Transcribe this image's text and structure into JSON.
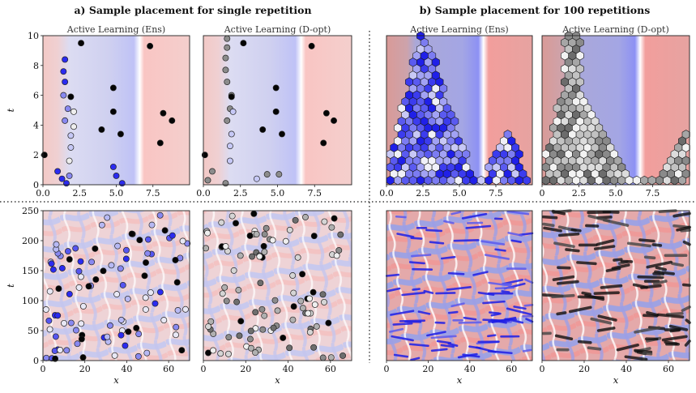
{
  "figure": {
    "title_a": "a) Sample placement for single repetition",
    "title_b": "b) Sample placement for 100 repetitions"
  },
  "chart_data": [
    {
      "id": "a-top-ens",
      "type": "scatter",
      "title": "Active Learning (Ens)",
      "xlabel": "",
      "ylabel": "t",
      "xlim": [
        0,
        10
      ],
      "ylim": [
        0,
        10
      ],
      "xticks": [
        "0.0",
        "2.5",
        "5.0",
        "7.5"
      ],
      "yticks": [
        "0",
        "2",
        "4",
        "6",
        "8",
        "10"
      ],
      "points": [
        {
          "x": 0.1,
          "y": 2.0,
          "c": "black"
        },
        {
          "x": 1.0,
          "y": 0.9,
          "c": "blue"
        },
        {
          "x": 1.3,
          "y": 0.4,
          "c": "blue"
        },
        {
          "x": 1.6,
          "y": 0.1,
          "c": "blue"
        },
        {
          "x": 1.9,
          "y": 2.5,
          "c": "light"
        },
        {
          "x": 1.9,
          "y": 3.3,
          "c": "light"
        },
        {
          "x": 1.5,
          "y": 4.3,
          "c": "mid"
        },
        {
          "x": 1.7,
          "y": 5.1,
          "c": "mid"
        },
        {
          "x": 1.4,
          "y": 6.0,
          "c": "mid"
        },
        {
          "x": 1.5,
          "y": 6.9,
          "c": "blue"
        },
        {
          "x": 1.4,
          "y": 7.6,
          "c": "blue"
        },
        {
          "x": 1.5,
          "y": 8.4,
          "c": "blue"
        },
        {
          "x": 1.8,
          "y": 1.6,
          "c": "pale"
        },
        {
          "x": 2.1,
          "y": 3.9,
          "c": "pale"
        },
        {
          "x": 2.1,
          "y": 4.9,
          "c": "pale"
        },
        {
          "x": 1.9,
          "y": 5.9,
          "c": "black"
        },
        {
          "x": 1.8,
          "y": 0.6,
          "c": "mid"
        },
        {
          "x": 2.6,
          "y": 9.5,
          "c": "black"
        },
        {
          "x": 4.0,
          "y": 3.7,
          "c": "black"
        },
        {
          "x": 4.8,
          "y": 6.5,
          "c": "black"
        },
        {
          "x": 4.8,
          "y": 4.9,
          "c": "black"
        },
        {
          "x": 5.3,
          "y": 3.4,
          "c": "black"
        },
        {
          "x": 4.8,
          "y": 1.2,
          "c": "blue"
        },
        {
          "x": 5.0,
          "y": 0.6,
          "c": "blue"
        },
        {
          "x": 5.4,
          "y": 0.1,
          "c": "blue"
        },
        {
          "x": 7.3,
          "y": 9.3,
          "c": "black"
        },
        {
          "x": 8.2,
          "y": 4.8,
          "c": "black"
        },
        {
          "x": 8.8,
          "y": 4.3,
          "c": "black"
        },
        {
          "x": 8.0,
          "y": 2.8,
          "c": "black"
        }
      ]
    },
    {
      "id": "a-top-dopt",
      "type": "scatter",
      "title": "Active Learning (D-opt)",
      "xlim": [
        0,
        10
      ],
      "ylim": [
        0,
        10
      ],
      "xticks": [
        "0.0",
        "2.5",
        "5.0",
        "7.5"
      ],
      "points": [
        {
          "x": 0.1,
          "y": 2.0,
          "c": "black"
        },
        {
          "x": 0.6,
          "y": 0.9,
          "c": "gray"
        },
        {
          "x": 0.3,
          "y": 0.3,
          "c": "gray"
        },
        {
          "x": 1.5,
          "y": 0.1,
          "c": "gray"
        },
        {
          "x": 1.8,
          "y": 2.6,
          "c": "light"
        },
        {
          "x": 1.9,
          "y": 3.4,
          "c": "light"
        },
        {
          "x": 1.6,
          "y": 4.3,
          "c": "gray"
        },
        {
          "x": 1.8,
          "y": 5.1,
          "c": "gray"
        },
        {
          "x": 1.9,
          "y": 6.0,
          "c": "gray"
        },
        {
          "x": 1.6,
          "y": 6.9,
          "c": "gray"
        },
        {
          "x": 1.5,
          "y": 7.7,
          "c": "gray"
        },
        {
          "x": 1.5,
          "y": 8.5,
          "c": "gray"
        },
        {
          "x": 1.6,
          "y": 9.2,
          "c": "gray"
        },
        {
          "x": 1.6,
          "y": 9.8,
          "c": "gray"
        },
        {
          "x": 1.8,
          "y": 1.6,
          "c": "light"
        },
        {
          "x": 2.0,
          "y": 4.9,
          "c": "light"
        },
        {
          "x": 1.9,
          "y": 5.9,
          "c": "black"
        },
        {
          "x": 2.7,
          "y": 9.5,
          "c": "black"
        },
        {
          "x": 4.0,
          "y": 3.7,
          "c": "black"
        },
        {
          "x": 4.9,
          "y": 6.5,
          "c": "black"
        },
        {
          "x": 4.9,
          "y": 4.9,
          "c": "black"
        },
        {
          "x": 5.3,
          "y": 3.4,
          "c": "black"
        },
        {
          "x": 4.3,
          "y": 0.7,
          "c": "gray"
        },
        {
          "x": 3.6,
          "y": 0.4,
          "c": "light"
        },
        {
          "x": 5.1,
          "y": 0.7,
          "c": "gray"
        },
        {
          "x": 7.3,
          "y": 9.3,
          "c": "black"
        },
        {
          "x": 8.3,
          "y": 4.8,
          "c": "black"
        },
        {
          "x": 8.8,
          "y": 4.3,
          "c": "black"
        },
        {
          "x": 8.1,
          "y": 2.8,
          "c": "black"
        }
      ]
    },
    {
      "id": "b-top-ens",
      "type": "heatmap",
      "title": "Active Learning (Ens)",
      "xlim": [
        0,
        10
      ],
      "ylim": [
        0,
        10
      ],
      "xticks": [
        "0.0",
        "2.5",
        "5.0",
        "7.5"
      ],
      "style": "blue"
    },
    {
      "id": "b-top-dopt",
      "type": "heatmap",
      "title": "Active Learning (D-opt)",
      "xlim": [
        0,
        10
      ],
      "ylim": [
        0,
        10
      ],
      "xticks": [
        "0",
        "2.5",
        "5.0",
        "7.5"
      ],
      "style": "gray"
    },
    {
      "id": "a-bottom-ens",
      "type": "scatter",
      "xlabel": "x",
      "ylabel": "t",
      "xlim": [
        0,
        70
      ],
      "ylim": [
        0,
        250
      ],
      "xticks": [
        "0",
        "20",
        "40",
        "60"
      ],
      "yticks": [
        "0",
        "50",
        "100",
        "150",
        "200",
        "250"
      ],
      "n_points": 100,
      "style": "blue"
    },
    {
      "id": "a-bottom-dopt",
      "type": "scatter",
      "xlabel": "x",
      "xlim": [
        0,
        70
      ],
      "ylim": [
        0,
        250
      ],
      "xticks": [
        "0",
        "20",
        "40",
        "60"
      ],
      "n_points": 100,
      "style": "gray"
    },
    {
      "id": "b-bottom-ens",
      "type": "heatmap",
      "xlabel": "x",
      "xlim": [
        0,
        70
      ],
      "ylim": [
        0,
        250
      ],
      "xticks": [
        "0",
        "20",
        "40",
        "60"
      ],
      "style": "blue"
    },
    {
      "id": "b-bottom-dopt",
      "type": "heatmap",
      "xlabel": "x",
      "xlim": [
        0,
        70
      ],
      "ylim": [
        0,
        250
      ],
      "xticks": [
        "0",
        "20",
        "40",
        "60"
      ],
      "style": "gray"
    }
  ]
}
